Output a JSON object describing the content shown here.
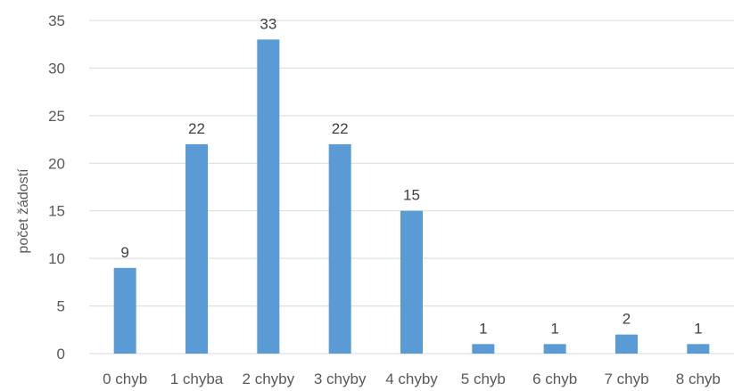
{
  "chart_data": {
    "type": "bar",
    "title": "",
    "xlabel": "",
    "ylabel": "počet žádostí",
    "ylim": [
      0,
      35
    ],
    "yticks": [
      0,
      5,
      10,
      15,
      20,
      25,
      30,
      35
    ],
    "grid": true,
    "legend": "none",
    "bar_color": "#5b9bd5",
    "categories": [
      "0 chyb",
      "1 chyba",
      "2 chyby",
      "3 chyby",
      "4 chyby",
      "5 chyb",
      "6 chyb",
      "7 chyb",
      "8 chyb"
    ],
    "values": [
      9,
      22,
      33,
      22,
      15,
      1,
      1,
      2,
      1
    ],
    "data_labels": [
      "9",
      "22",
      "33",
      "22",
      "15",
      "1",
      "1",
      "2",
      "1"
    ]
  }
}
